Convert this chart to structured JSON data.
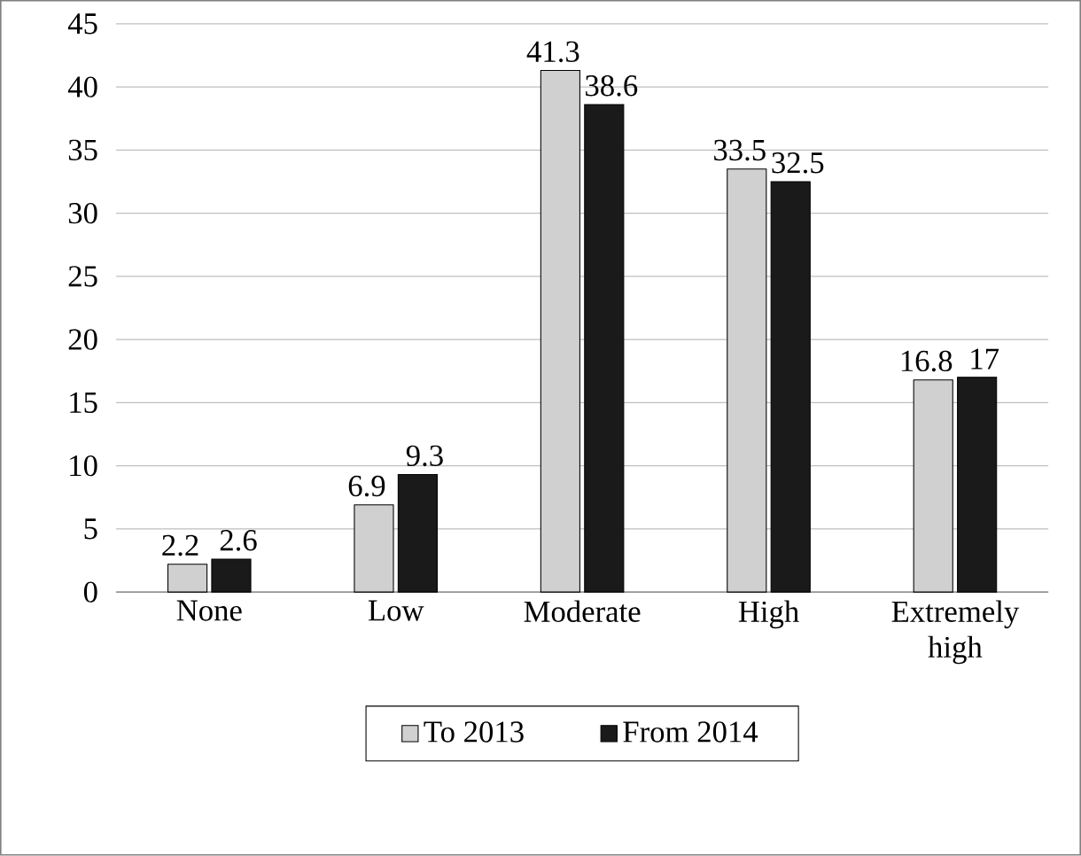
{
  "chart_data": {
    "type": "bar",
    "categories": [
      "None",
      "Low",
      "Moderate",
      "High",
      "Extremely high"
    ],
    "series": [
      {
        "name": "To 2013",
        "color": "#d0d0d0",
        "values": [
          2.2,
          6.9,
          41.3,
          33.5,
          16.8
        ]
      },
      {
        "name": "From 2014",
        "color": "#1a1a1a",
        "values": [
          2.6,
          9.3,
          38.6,
          32.5,
          17
        ]
      }
    ],
    "ylim": [
      0,
      45
    ],
    "yticks": [
      0,
      5,
      10,
      15,
      20,
      25,
      30,
      35,
      40,
      45
    ],
    "grid": "y",
    "legend": "bottom",
    "data_labels": true
  }
}
